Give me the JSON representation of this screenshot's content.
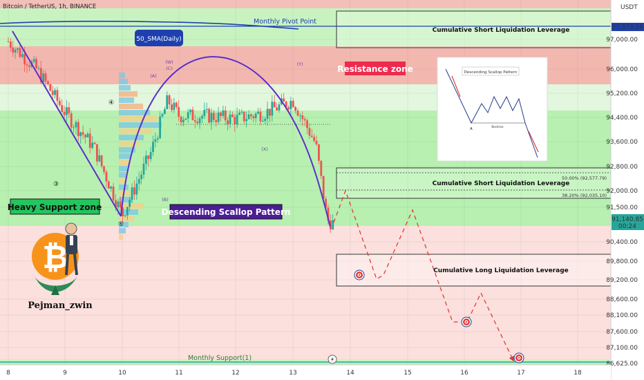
{
  "header": {
    "symbol_line": "Bitcoin / TetherUS, 1h, BINANCE",
    "currency": "USDT"
  },
  "price_axis": {
    "ticks": [
      "97,000.00",
      "96,000.00",
      "95,200.00",
      "94,400.00",
      "93,600.00",
      "92,800.00",
      "92,000.00",
      "91,500.00",
      "90,400.00",
      "89,800.00",
      "89,200.00",
      "88,600.00",
      "88,100.00",
      "87,600.00",
      "87,100.00",
      "86,625.00"
    ],
    "pivot_label": "97,373.26",
    "last_price": "91,140.85",
    "countdown": "00:24"
  },
  "time_axis": {
    "ticks": [
      "8",
      "9",
      "10",
      "11",
      "12",
      "13",
      "14",
      "15",
      "16",
      "17",
      "18"
    ]
  },
  "annotations": {
    "monthly_pivot": "Monthly Pivot Point",
    "sma": "50_SMA(Daily)",
    "resistance": "Resistance zone",
    "heavy_support": "Heavy Support zone",
    "scallop": "Descending Scallop Pattern",
    "short_liq_top": "Cumulative Short Liquidation Leverage",
    "short_liq_mid": "Cumulative Short Liquidation Leverage",
    "long_liq": "Cumulative Long Liquidation Leverage",
    "fib_50": "50.00% (92,577.79)",
    "fib_382": "38.20% (92,035.10)",
    "monthly_support": "Monthly Support(1)",
    "author": "Pejman_zwin",
    "waves": [
      "(A)",
      "(B)",
      "(C)",
      "(W)",
      "(X)",
      "(Y)",
      "③",
      "④",
      "⑤"
    ],
    "inset_title": "Descending Scallop Pattern",
    "inset_neckline": "Neckline",
    "inset_point": "A"
  },
  "colors": {
    "up": "#26a69a",
    "down": "#ef5350",
    "support_zone": "#b7f0b0",
    "resistance_zone": "#f2b8b0",
    "arc": "#5a2ec8",
    "pivot": "#1e40af",
    "projection": "#e53935"
  },
  "chart_data": {
    "type": "candlestick",
    "title": "Bitcoin / TetherUS, 1h, BINANCE",
    "x": [
      "8",
      "9",
      "10",
      "11",
      "12",
      "13",
      "14",
      "15",
      "16",
      "17",
      "18"
    ],
    "ylim": [
      86625,
      97600
    ],
    "series": [
      {
        "name": "price_path_approx",
        "x": [
          "8",
          "8.5",
          "9",
          "9.5",
          "10",
          "10.5",
          "10.8",
          "11",
          "11.5",
          "12",
          "12.5",
          "13",
          "13.4",
          "13.6",
          "13.7"
        ],
        "values": [
          97000,
          96100,
          94700,
          93600,
          91400,
          93400,
          95100,
          94600,
          94600,
          94500,
          94700,
          95100,
          93700,
          91250,
          91140
        ]
      },
      {
        "name": "projection",
        "x": [
          "13.7",
          "13.9",
          "14.4",
          "14.5",
          "15.0",
          "15.6",
          "15.9",
          "16.3",
          "16.8"
        ],
        "values": [
          91140,
          92050,
          89200,
          89200,
          91500,
          89200,
          88000,
          88600,
          86625
        ]
      }
    ],
    "levels": {
      "monthly_pivot": 97373.26,
      "fib_50": 92577.79,
      "fib_382": 92035.1,
      "monthly_support": 86625
    }
  }
}
